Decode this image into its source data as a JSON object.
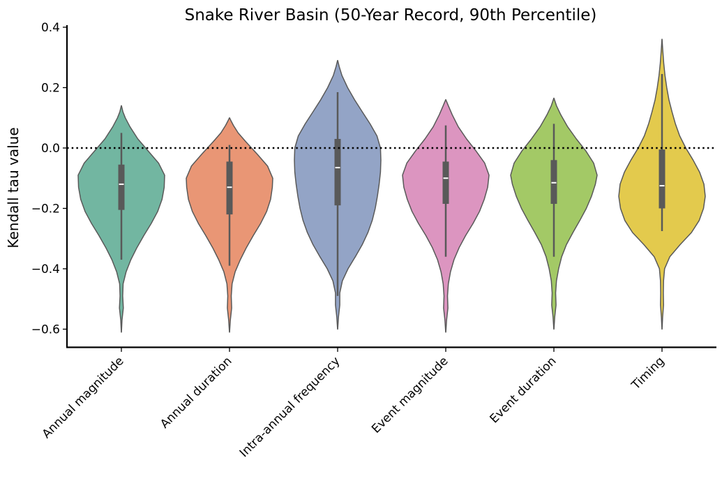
{
  "chart_data": {
    "type": "violin",
    "title": "Snake River Basin (50-Year Record, 90th Percentile)",
    "xlabel": "",
    "ylabel": "Kendall tau value",
    "ylim": [
      -0.66,
      0.41
    ],
    "yticks": [
      -0.6,
      -0.4,
      -0.2,
      0.0,
      0.2,
      0.4
    ],
    "ytick_labels": [
      "−0.6",
      "−0.4",
      "−0.2",
      "0.0",
      "0.2",
      "0.4"
    ],
    "reference_line": {
      "y": 0.0,
      "style": "dotted",
      "color": "#000000"
    },
    "grid": false,
    "categories": [
      "Annual magnitude",
      "Annual duration",
      "Intra-annual frequency",
      "Event magnitude",
      "Event duration",
      "Timing"
    ],
    "series": [
      {
        "category": "Annual magnitude",
        "color": "#72b6a1",
        "range": [
          -0.61,
          0.14
        ],
        "whiskers": [
          -0.37,
          0.05
        ],
        "box": [
          -0.205,
          -0.055
        ],
        "median": -0.12,
        "density": [
          [
            -0.61,
            0.002
          ],
          [
            -0.57,
            0.015
          ],
          [
            -0.53,
            0.045
          ],
          [
            -0.49,
            0.03
          ],
          [
            -0.45,
            0.04
          ],
          [
            -0.41,
            0.11
          ],
          [
            -0.37,
            0.22
          ],
          [
            -0.33,
            0.36
          ],
          [
            -0.29,
            0.52
          ],
          [
            -0.25,
            0.69
          ],
          [
            -0.21,
            0.84
          ],
          [
            -0.17,
            0.94
          ],
          [
            -0.13,
            0.99
          ],
          [
            -0.09,
            1.0
          ],
          [
            -0.05,
            0.86
          ],
          [
            -0.01,
            0.62
          ],
          [
            0.03,
            0.38
          ],
          [
            0.07,
            0.2
          ],
          [
            0.1,
            0.09
          ],
          [
            0.12,
            0.035
          ],
          [
            0.14,
            0.002
          ]
        ]
      },
      {
        "category": "Annual duration",
        "color": "#e99675",
        "range": [
          -0.61,
          0.1
        ],
        "whiskers": [
          -0.39,
          0.01
        ],
        "box": [
          -0.22,
          -0.045
        ],
        "median": -0.13,
        "density": [
          [
            -0.61,
            0.002
          ],
          [
            -0.57,
            0.02
          ],
          [
            -0.53,
            0.05
          ],
          [
            -0.49,
            0.04
          ],
          [
            -0.45,
            0.06
          ],
          [
            -0.41,
            0.13
          ],
          [
            -0.37,
            0.25
          ],
          [
            -0.33,
            0.39
          ],
          [
            -0.29,
            0.55
          ],
          [
            -0.25,
            0.72
          ],
          [
            -0.21,
            0.86
          ],
          [
            -0.17,
            0.95
          ],
          [
            -0.13,
            0.99
          ],
          [
            -0.1,
            1.0
          ],
          [
            -0.06,
            0.88
          ],
          [
            -0.02,
            0.64
          ],
          [
            0.02,
            0.38
          ],
          [
            0.05,
            0.2
          ],
          [
            0.075,
            0.09
          ],
          [
            0.09,
            0.035
          ],
          [
            0.1,
            0.002
          ]
        ]
      },
      {
        "category": "Intra-annual frequency",
        "color": "#93a4c6",
        "range": [
          -0.6,
          0.29
        ],
        "whiskers": [
          -0.49,
          0.185
        ],
        "box": [
          -0.19,
          0.03
        ],
        "median": -0.065,
        "density": [
          [
            -0.6,
            0.002
          ],
          [
            -0.56,
            0.02
          ],
          [
            -0.52,
            0.05
          ],
          [
            -0.48,
            0.05
          ],
          [
            -0.44,
            0.11
          ],
          [
            -0.4,
            0.24
          ],
          [
            -0.36,
            0.41
          ],
          [
            -0.32,
            0.57
          ],
          [
            -0.28,
            0.7
          ],
          [
            -0.24,
            0.8
          ],
          [
            -0.2,
            0.87
          ],
          [
            -0.16,
            0.92
          ],
          [
            -0.12,
            0.96
          ],
          [
            -0.08,
            0.99
          ],
          [
            -0.04,
            1.0
          ],
          [
            0.0,
            0.99
          ],
          [
            0.04,
            0.91
          ],
          [
            0.08,
            0.75
          ],
          [
            0.12,
            0.57
          ],
          [
            0.16,
            0.39
          ],
          [
            0.2,
            0.23
          ],
          [
            0.24,
            0.1
          ],
          [
            0.27,
            0.035
          ],
          [
            0.29,
            0.002
          ]
        ]
      },
      {
        "category": "Event magnitude",
        "color": "#dc95c0",
        "range": [
          -0.61,
          0.16
        ],
        "whiskers": [
          -0.36,
          0.075
        ],
        "box": [
          -0.185,
          -0.045
        ],
        "median": -0.1,
        "density": [
          [
            -0.61,
            0.002
          ],
          [
            -0.57,
            0.02
          ],
          [
            -0.53,
            0.05
          ],
          [
            -0.49,
            0.04
          ],
          [
            -0.45,
            0.06
          ],
          [
            -0.41,
            0.11
          ],
          [
            -0.37,
            0.19
          ],
          [
            -0.33,
            0.31
          ],
          [
            -0.29,
            0.46
          ],
          [
            -0.25,
            0.63
          ],
          [
            -0.21,
            0.78
          ],
          [
            -0.17,
            0.89
          ],
          [
            -0.13,
            0.97
          ],
          [
            -0.09,
            1.0
          ],
          [
            -0.05,
            0.9
          ],
          [
            -0.01,
            0.7
          ],
          [
            0.03,
            0.48
          ],
          [
            0.07,
            0.29
          ],
          [
            0.11,
            0.15
          ],
          [
            0.14,
            0.06
          ],
          [
            0.16,
            0.002
          ]
        ]
      },
      {
        "category": "Event duration",
        "color": "#a3c966",
        "range": [
          -0.6,
          0.165
        ],
        "whiskers": [
          -0.36,
          0.08
        ],
        "box": [
          -0.185,
          -0.04
        ],
        "median": -0.115,
        "density": [
          [
            -0.6,
            0.002
          ],
          [
            -0.56,
            0.02
          ],
          [
            -0.52,
            0.05
          ],
          [
            -0.48,
            0.04
          ],
          [
            -0.44,
            0.06
          ],
          [
            -0.4,
            0.11
          ],
          [
            -0.36,
            0.18
          ],
          [
            -0.32,
            0.29
          ],
          [
            -0.28,
            0.44
          ],
          [
            -0.24,
            0.6
          ],
          [
            -0.2,
            0.75
          ],
          [
            -0.16,
            0.87
          ],
          [
            -0.12,
            0.96
          ],
          [
            -0.09,
            1.0
          ],
          [
            -0.05,
            0.92
          ],
          [
            -0.01,
            0.74
          ],
          [
            0.03,
            0.52
          ],
          [
            0.07,
            0.32
          ],
          [
            0.11,
            0.16
          ],
          [
            0.14,
            0.06
          ],
          [
            0.165,
            0.002
          ]
        ]
      },
      {
        "category": "Timing",
        "color": "#e3ca4d",
        "range": [
          -0.6,
          0.36
        ],
        "whiskers": [
          -0.275,
          0.245
        ],
        "box": [
          -0.2,
          -0.005
        ],
        "median": -0.125,
        "density": [
          [
            -0.6,
            0.002
          ],
          [
            -0.56,
            0.015
          ],
          [
            -0.52,
            0.035
          ],
          [
            -0.48,
            0.03
          ],
          [
            -0.44,
            0.035
          ],
          [
            -0.4,
            0.06
          ],
          [
            -0.36,
            0.18
          ],
          [
            -0.32,
            0.42
          ],
          [
            -0.28,
            0.68
          ],
          [
            -0.24,
            0.86
          ],
          [
            -0.2,
            0.96
          ],
          [
            -0.16,
            1.0
          ],
          [
            -0.12,
            0.97
          ],
          [
            -0.08,
            0.87
          ],
          [
            -0.04,
            0.72
          ],
          [
            0.0,
            0.55
          ],
          [
            0.04,
            0.41
          ],
          [
            0.08,
            0.31
          ],
          [
            0.12,
            0.23
          ],
          [
            0.16,
            0.16
          ],
          [
            0.2,
            0.11
          ],
          [
            0.24,
            0.07
          ],
          [
            0.28,
            0.04
          ],
          [
            0.32,
            0.02
          ],
          [
            0.345,
            0.008
          ],
          [
            0.36,
            0.002
          ]
        ]
      }
    ]
  }
}
